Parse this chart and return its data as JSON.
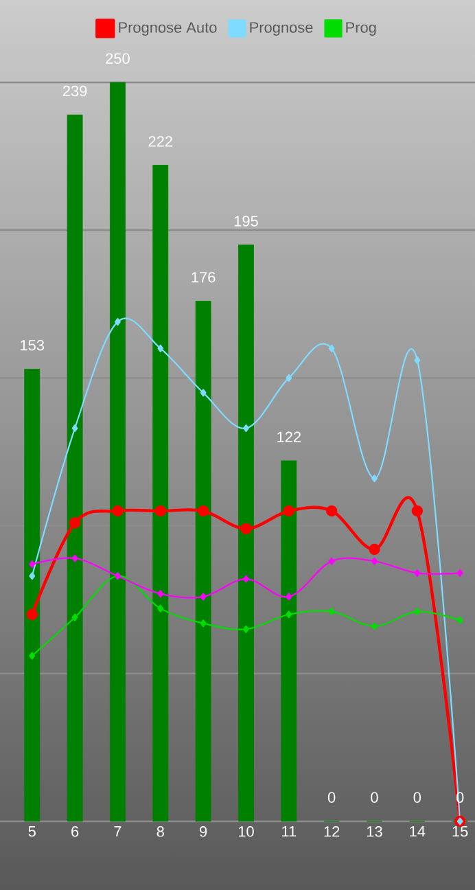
{
  "chart_data": {
    "type": "bar",
    "categories": [
      "5",
      "6",
      "7",
      "8",
      "9",
      "10",
      "11",
      "12",
      "13",
      "14",
      "15"
    ],
    "series": [
      {
        "color": "#008000",
        "values": [
          153,
          239,
          250,
          222,
          176,
          195,
          122,
          0,
          0,
          0,
          0
        ],
        "value_labels": [
          "153",
          "239",
          "250",
          "222",
          "176",
          "195",
          "122",
          "0",
          "0",
          "0",
          "0"
        ]
      },
      {
        "type": "line",
        "name": "Prognose Auto",
        "color": "#ff0000",
        "marker": "circle",
        "values": [
          70,
          101,
          105,
          105,
          105,
          99,
          105,
          105,
          92,
          105,
          0
        ]
      },
      {
        "type": "line",
        "name": "Prognose",
        "color": "#7fdbff",
        "marker": "diamond",
        "values": [
          83,
          133,
          169,
          160,
          145,
          133,
          150,
          160,
          116,
          156,
          0
        ]
      },
      {
        "type": "line",
        "name": "Prog",
        "color": "#00dd00",
        "marker": "diamond",
        "values": [
          56,
          69,
          83,
          72,
          67,
          65,
          70,
          71,
          66,
          71,
          68
        ]
      },
      {
        "type": "line",
        "color": "#ff00ff",
        "marker": "diamond",
        "values": [
          87,
          89,
          83,
          77,
          76,
          82,
          76,
          88,
          88,
          84,
          84
        ]
      }
    ],
    "ylim": [
      0,
      250
    ],
    "yticks": [
      {
        "value": 0,
        "label": null
      },
      {
        "value": 50,
        "label": null
      },
      {
        "value": 100,
        "label": null
      },
      {
        "value": 150,
        "label": null
      },
      {
        "value": 200,
        "label": null
      },
      {
        "value": 250,
        "label": null
      }
    ],
    "grid": "y",
    "legend": "top",
    "tick_labels": "x"
  }
}
